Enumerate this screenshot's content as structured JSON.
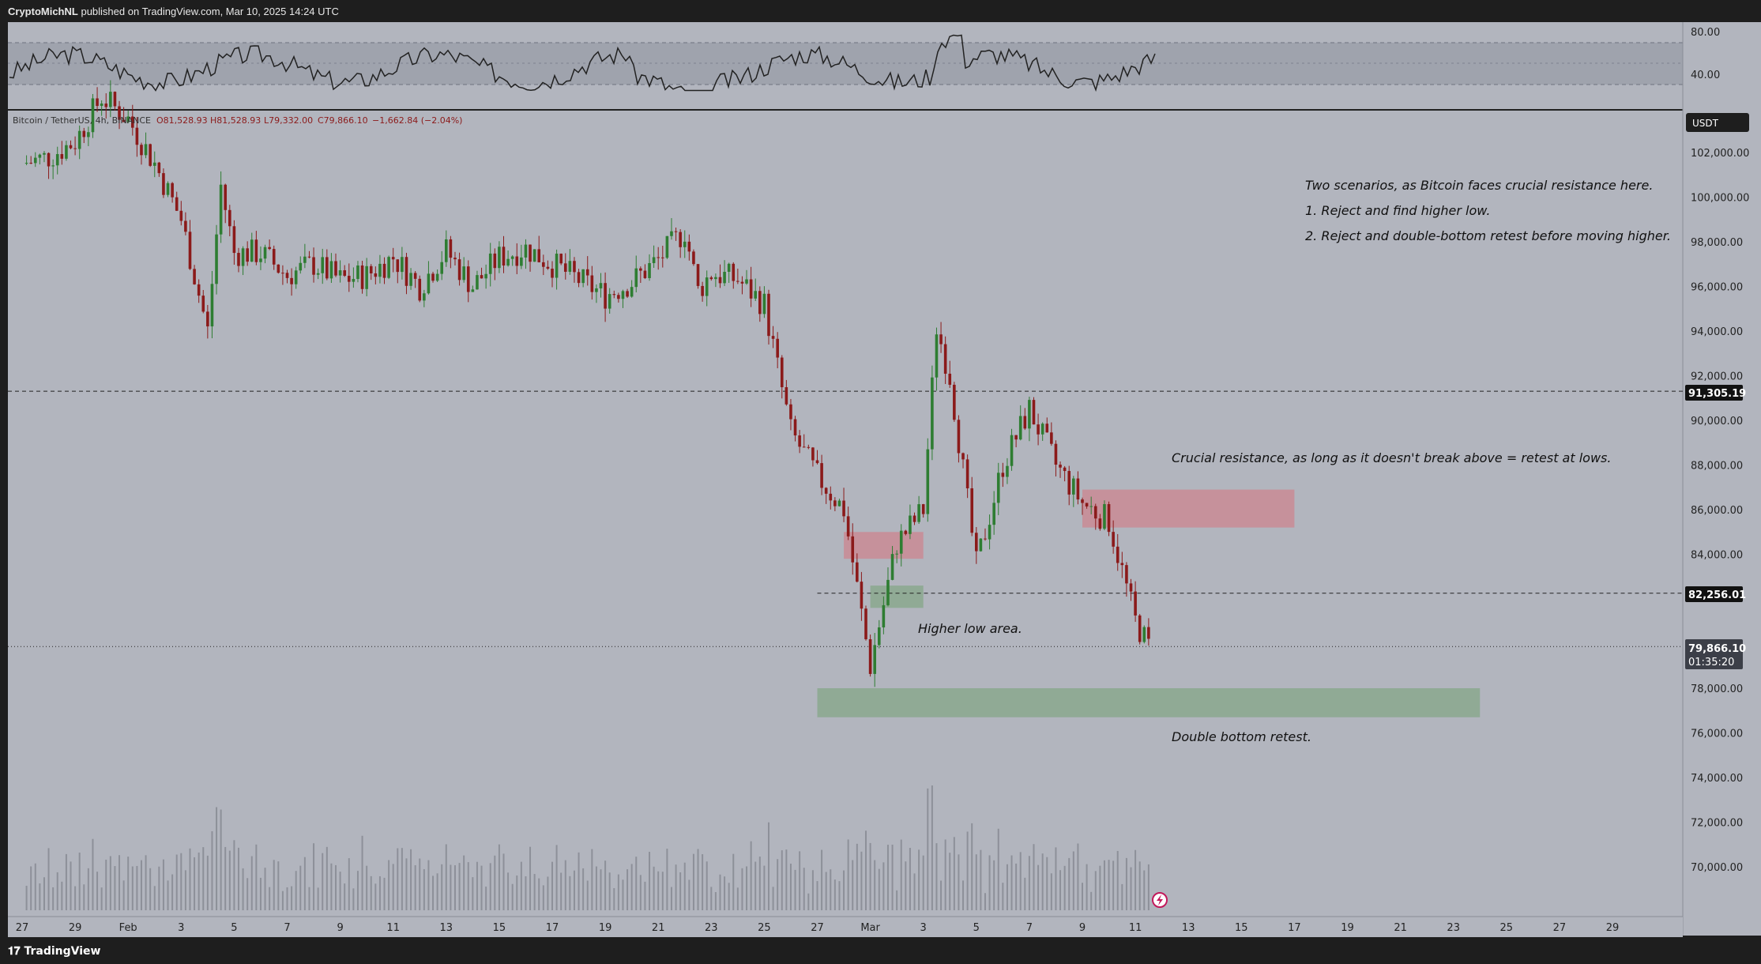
{
  "header": {
    "author": "CryptoMichNL",
    "published_text": "published on TradingView.com, Mar 10, 2025 14:24 UTC"
  },
  "footer": {
    "brand": "TradingView"
  },
  "legend": {
    "symbol": "Bitcoin / TetherUS, 4h, BINANCE",
    "open": "O81,528.93",
    "high": "H81,528.93",
    "low": "L79,332.00",
    "close": "C79,866.10",
    "change": "−1,662.84 (−2.04%)"
  },
  "annotations": {
    "scenario_title": "Two scenarios, as Bitcoin faces crucial resistance here.",
    "scenario_1": "1. Reject and find higher low.",
    "scenario_2": "2. Reject and double-bottom retest before moving higher.",
    "resistance_note": "Crucial resistance, as long as it doesn't break above = retest at lows.",
    "higher_low": "Higher low area.",
    "double_bottom": "Double bottom retest."
  },
  "price_axis": {
    "currency_badge": "USDT",
    "ticks": [
      "102,000.00",
      "100,000.00",
      "98,000.00",
      "96,000.00",
      "94,000.00",
      "92,000.00",
      "90,000.00",
      "88,000.00",
      "86,000.00",
      "84,000.00",
      "78,000.00",
      "76,000.00",
      "74,000.00",
      "72,000.00",
      "70,000.00"
    ],
    "marker_resistance": "91,305.19",
    "marker_support": "82,256.01",
    "marker_last": "79,866.10",
    "countdown": "01:35:20"
  },
  "rsi_axis": {
    "ticks": [
      "80.00",
      "40.00"
    ]
  },
  "time_axis": {
    "ticks": [
      "27",
      "29",
      "Feb",
      "3",
      "5",
      "7",
      "9",
      "11",
      "13",
      "15",
      "17",
      "19",
      "21",
      "23",
      "25",
      "27",
      "Mar",
      "3",
      "5",
      "7",
      "9",
      "11",
      "13",
      "15",
      "17",
      "19",
      "21",
      "23",
      "25",
      "27",
      "29"
    ]
  },
  "colors": {
    "chart_bg": "#b2b5be",
    "up_candle": "#2e7d32",
    "down_candle": "#8b1a1a",
    "resistance_zone": "#c98b95",
    "support_zone": "#8aa88e",
    "rsi_band": "#9fa3ad"
  },
  "chart_data": {
    "type": "candlestick",
    "title": "Bitcoin / TetherUS, 4h, BINANCE",
    "interval": "4h",
    "x_range": [
      "Jan 27",
      "Mar 29"
    ],
    "ylim": [
      69000,
      104000
    ],
    "grid": false,
    "horizontal_levels": [
      {
        "value": 91305.19,
        "style": "dashed"
      },
      {
        "value": 82256.01,
        "style": "dashed"
      },
      {
        "value": 79866.1,
        "style": "dotted"
      }
    ],
    "zones": [
      {
        "kind": "resistance",
        "x_start": "Mar 8",
        "x_end": "Mar 16",
        "y_low": 85200,
        "y_high": 86900
      },
      {
        "kind": "resistance",
        "x_start": "Feb 27",
        "x_end": "Mar 2",
        "y_low": 83800,
        "y_high": 85000
      },
      {
        "kind": "support",
        "x_start": "Feb 28",
        "x_end": "Mar 2",
        "y_low": 81600,
        "y_high": 82600
      },
      {
        "kind": "support",
        "x_start": "Feb 26",
        "x_end": "Mar 23",
        "y_low": 76700,
        "y_high": 78000
      }
    ],
    "closes": [
      {
        "d": "Jan 27",
        "v": 101500
      },
      {
        "d": "Jan 28",
        "v": 101800
      },
      {
        "d": "Jan 29",
        "v": 102500
      },
      {
        "d": "Jan 30",
        "v": 104500
      },
      {
        "d": "Jan 31",
        "v": 103500
      },
      {
        "d": "Feb 1",
        "v": 101500
      },
      {
        "d": "Feb 2",
        "v": 99000
      },
      {
        "d": "Feb 3",
        "v": 94000
      },
      {
        "d": "Feb 3.5",
        "v": 100500
      },
      {
        "d": "Feb 4",
        "v": 97500
      },
      {
        "d": "Feb 5",
        "v": 97500
      },
      {
        "d": "Feb 6",
        "v": 96500
      },
      {
        "d": "Feb 7",
        "v": 97000
      },
      {
        "d": "Feb 8",
        "v": 96300
      },
      {
        "d": "Feb 9",
        "v": 96500
      },
      {
        "d": "Feb 10",
        "v": 97300
      },
      {
        "d": "Feb 11",
        "v": 96000
      },
      {
        "d": "Feb 12",
        "v": 97600
      },
      {
        "d": "Feb 13",
        "v": 96000
      },
      {
        "d": "Feb 14",
        "v": 97300
      },
      {
        "d": "Feb 15",
        "v": 97700
      },
      {
        "d": "Feb 16",
        "v": 97000
      },
      {
        "d": "Feb 17",
        "v": 96300
      },
      {
        "d": "Feb 18",
        "v": 95600
      },
      {
        "d": "Feb 19",
        "v": 96200
      },
      {
        "d": "Feb 20",
        "v": 97200
      },
      {
        "d": "Feb 21",
        "v": 98500
      },
      {
        "d": "Feb 21.5",
        "v": 95800
      },
      {
        "d": "Feb 22",
        "v": 96600
      },
      {
        "d": "Feb 23",
        "v": 96300
      },
      {
        "d": "Feb 24",
        "v": 95200
      },
      {
        "d": "Feb 25",
        "v": 89500
      },
      {
        "d": "Feb 26",
        "v": 87500
      },
      {
        "d": "Feb 27",
        "v": 86000
      },
      {
        "d": "Feb 28",
        "v": 79000
      },
      {
        "d": "Mar 1",
        "v": 84500
      },
      {
        "d": "Mar 2",
        "v": 86000
      },
      {
        "d": "Mar 2.5",
        "v": 94200
      },
      {
        "d": "Mar 3",
        "v": 92000
      },
      {
        "d": "Mar 4",
        "v": 83500
      },
      {
        "d": "Mar 5",
        "v": 88000
      },
      {
        "d": "Mar 6",
        "v": 90500
      },
      {
        "d": "Mar 7",
        "v": 88000
      },
      {
        "d": "Mar 8",
        "v": 86300
      },
      {
        "d": "Mar 9",
        "v": 85500
      },
      {
        "d": "Mar 10",
        "v": 81000
      },
      {
        "d": "Mar 10.5",
        "v": 79866
      }
    ]
  }
}
